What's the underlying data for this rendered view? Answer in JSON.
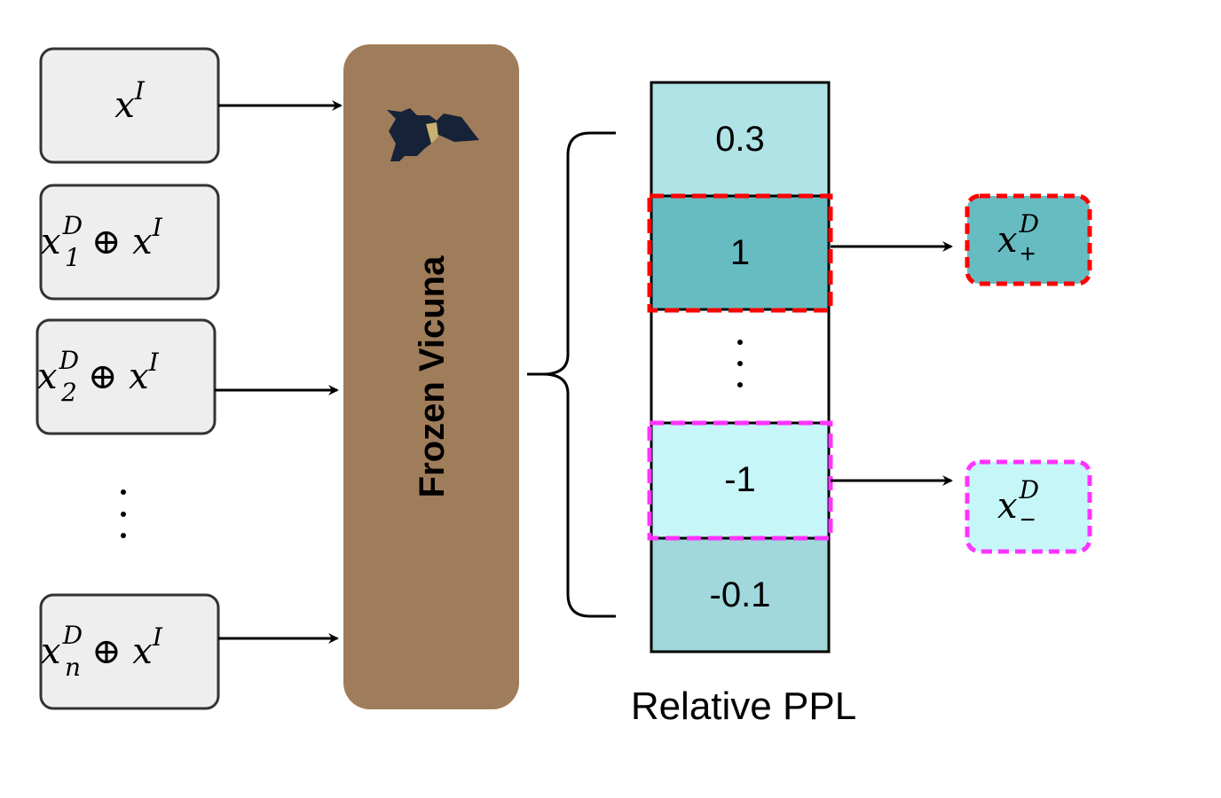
{
  "inputs": [
    {
      "base": "x",
      "sup": "I",
      "sub": "",
      "tail": ""
    },
    {
      "base": "x",
      "sup": "D",
      "sub": "1",
      "tail": "⊕ x",
      "tail_sup": "I"
    },
    {
      "base": "x",
      "sup": "D",
      "sub": "2",
      "tail": "⊕ x",
      "tail_sup": "I"
    },
    {
      "base": "x",
      "sup": "D",
      "sub": "n",
      "tail": "⊕ x",
      "tail_sup": "I"
    }
  ],
  "model": {
    "label": "Frozen Vicuna",
    "icon": "vicuna-llama-icon"
  },
  "ppl_cells": [
    "0.3",
    "1",
    "",
    "-1",
    "-0.1"
  ],
  "ppl_caption": "Relative PPL",
  "outputs": {
    "positive": {
      "base": "x",
      "sup": "D",
      "sub": "+"
    },
    "negative": {
      "base": "x",
      "sup": "D",
      "sub": "−"
    }
  },
  "colors": {
    "input_box": "#eeeeee",
    "model_box": "#a07d5a",
    "cell_top": "#b0e3e6",
    "cell_pos": "#67bcc2",
    "cell_neg": "#c6f6f7",
    "cell_bottom": "#a0d8dc",
    "red_dash": "#ff0000",
    "magenta_dash": "#ff33ff"
  }
}
